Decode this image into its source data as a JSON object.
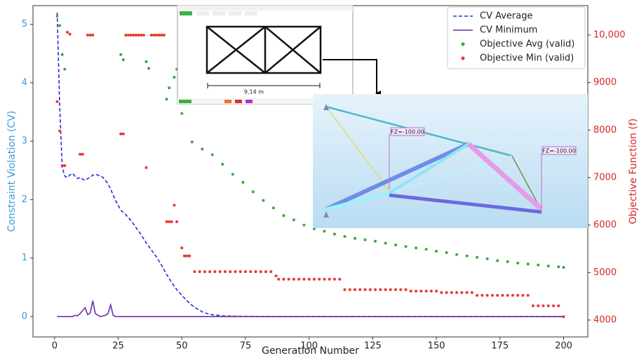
{
  "chart_data": {
    "type": "line",
    "xlabel": "Generation Number",
    "ylabel": "Constraint Violation (CV)",
    "y2label": "Objective Function (f)",
    "xlim": [
      -8.5,
      209.5
    ],
    "xticks": [
      0,
      25,
      50,
      75,
      100,
      125,
      150,
      175,
      200
    ],
    "ylim": [
      -0.35,
      5.32
    ],
    "yticks": [
      0,
      1,
      2,
      3,
      4,
      5
    ],
    "y2lim": [
      3645,
      10620
    ],
    "y2ticks": [
      4000,
      5000,
      6000,
      7000,
      8000,
      9000,
      {
        "value": 10000,
        "label": "10,000"
      }
    ],
    "ylabel_color": "#3a9ad9",
    "y2label_color": "#d62728",
    "legend": "upper right",
    "grid": false,
    "annotations": [
      "9,14 m",
      "FZ=-100.00",
      "FZ=-100.00"
    ],
    "series": [
      {
        "name": "CV Average",
        "type": "line",
        "dash": true,
        "color": "#2a2ae0",
        "axis": "y",
        "x": [
          1,
          2,
          3,
          4,
          5,
          6,
          7,
          8,
          9,
          10,
          11,
          12,
          13,
          14,
          15,
          16,
          17,
          18,
          19,
          20,
          21,
          22,
          23,
          24,
          25,
          26,
          28,
          30,
          32,
          34,
          36,
          38,
          40,
          42,
          44,
          46,
          48,
          50,
          52,
          54,
          56,
          58,
          60,
          62,
          64,
          66,
          70,
          80,
          100,
          150,
          200
        ],
        "values": [
          5.2,
          3.6,
          2.55,
          2.4,
          2.38,
          2.42,
          2.45,
          2.4,
          2.36,
          2.38,
          2.35,
          2.33,
          2.36,
          2.38,
          2.42,
          2.43,
          2.42,
          2.4,
          2.38,
          2.33,
          2.27,
          2.18,
          2.08,
          1.98,
          1.9,
          1.82,
          1.74,
          1.64,
          1.52,
          1.4,
          1.26,
          1.14,
          1.02,
          0.88,
          0.72,
          0.58,
          0.46,
          0.36,
          0.27,
          0.19,
          0.13,
          0.08,
          0.05,
          0.03,
          0.02,
          0.01,
          0.005,
          0,
          0,
          0,
          0
        ]
      },
      {
        "name": "CV Minimum",
        "type": "line",
        "dash": false,
        "color": "#6a2fa8",
        "axis": "y",
        "x": [
          1,
          7,
          8,
          9,
          10,
          11,
          12,
          13,
          14,
          15,
          16,
          17,
          18,
          19,
          20,
          21,
          22,
          23,
          24,
          200
        ],
        "values": [
          0,
          0,
          0.02,
          0.01,
          0.05,
          0.1,
          0.15,
          0.03,
          0.06,
          0.27,
          0.05,
          0.02,
          0,
          0.01,
          0.02,
          0.05,
          0.2,
          0.02,
          0,
          0
        ]
      },
      {
        "name": "Objective Avg (valid)",
        "type": "scatter",
        "color": "#3aa83a",
        "axis": "y2",
        "x": [
          1,
          2,
          3,
          4,
          26,
          27,
          36,
          37,
          44,
          45,
          47,
          48,
          50,
          54,
          58,
          62,
          66,
          70,
          74,
          78,
          82,
          86,
          90,
          94,
          98,
          102,
          106,
          110,
          114,
          118,
          122,
          126,
          130,
          134,
          138,
          142,
          146,
          150,
          154,
          158,
          162,
          166,
          170,
          174,
          178,
          182,
          186,
          190,
          194,
          198,
          200
        ],
        "values": [
          10400,
          10200,
          9590,
          9280,
          9590,
          9480,
          9440,
          9300,
          8650,
          8890,
          9110,
          9280,
          8350,
          7750,
          7600,
          7480,
          7280,
          7070,
          6900,
          6700,
          6520,
          6360,
          6200,
          6110,
          6000,
          5920,
          5870,
          5810,
          5760,
          5720,
          5690,
          5660,
          5620,
          5580,
          5550,
          5520,
          5490,
          5450,
          5420,
          5380,
          5350,
          5320,
          5290,
          5250,
          5230,
          5200,
          5180,
          5160,
          5140,
          5120,
          5110
        ]
      },
      {
        "name": "Objective Min (valid)",
        "type": "scatter",
        "color": "#e8392c",
        "axis": "y2",
        "x": [
          1,
          2,
          3,
          4,
          5,
          6,
          10,
          11,
          13,
          14,
          15,
          26,
          27,
          28,
          29,
          30,
          31,
          32,
          33,
          34,
          35,
          36,
          38,
          39,
          40,
          41,
          42,
          43,
          44,
          45,
          46,
          47,
          48,
          50,
          51,
          52,
          53,
          55,
          57,
          59,
          61,
          63,
          65,
          67,
          69,
          71,
          73,
          75,
          77,
          79,
          81,
          83,
          85,
          87,
          88,
          90,
          92,
          94,
          96,
          98,
          100,
          102,
          104,
          106,
          108,
          110,
          112,
          114,
          116,
          118,
          120,
          122,
          124,
          126,
          128,
          130,
          132,
          134,
          136,
          138,
          140,
          142,
          144,
          146,
          148,
          150,
          152,
          154,
          156,
          158,
          160,
          162,
          164,
          166,
          168,
          170,
          172,
          174,
          176,
          178,
          180,
          182,
          184,
          186,
          188,
          190,
          192,
          194,
          196,
          198,
          200
        ],
        "values": [
          8600,
          7980,
          7250,
          7250,
          10060,
          10020,
          7490,
          7490,
          10000,
          10000,
          10000,
          7920,
          7920,
          10000,
          10000,
          10000,
          10000,
          10000,
          10000,
          10000,
          10000,
          7210,
          10000,
          10000,
          10000,
          10000,
          10000,
          10000,
          6070,
          6070,
          6070,
          6420,
          6070,
          5520,
          5350,
          5350,
          5350,
          5020,
          5020,
          5020,
          5020,
          5020,
          5020,
          5020,
          5020,
          5020,
          5020,
          5020,
          5020,
          5020,
          5020,
          5020,
          5020,
          4930,
          4860,
          4860,
          4860,
          4860,
          4860,
          4860,
          4860,
          4860,
          4860,
          4860,
          4860,
          4860,
          4860,
          4640,
          4640,
          4640,
          4640,
          4640,
          4640,
          4640,
          4640,
          4640,
          4640,
          4640,
          4640,
          4640,
          4610,
          4610,
          4610,
          4610,
          4610,
          4610,
          4580,
          4580,
          4580,
          4580,
          4580,
          4580,
          4580,
          4520,
          4520,
          4520,
          4520,
          4520,
          4520,
          4520,
          4520,
          4520,
          4520,
          4520,
          4300,
          4300,
          4300,
          4300,
          4300,
          4300,
          4070
        ]
      }
    ]
  }
}
